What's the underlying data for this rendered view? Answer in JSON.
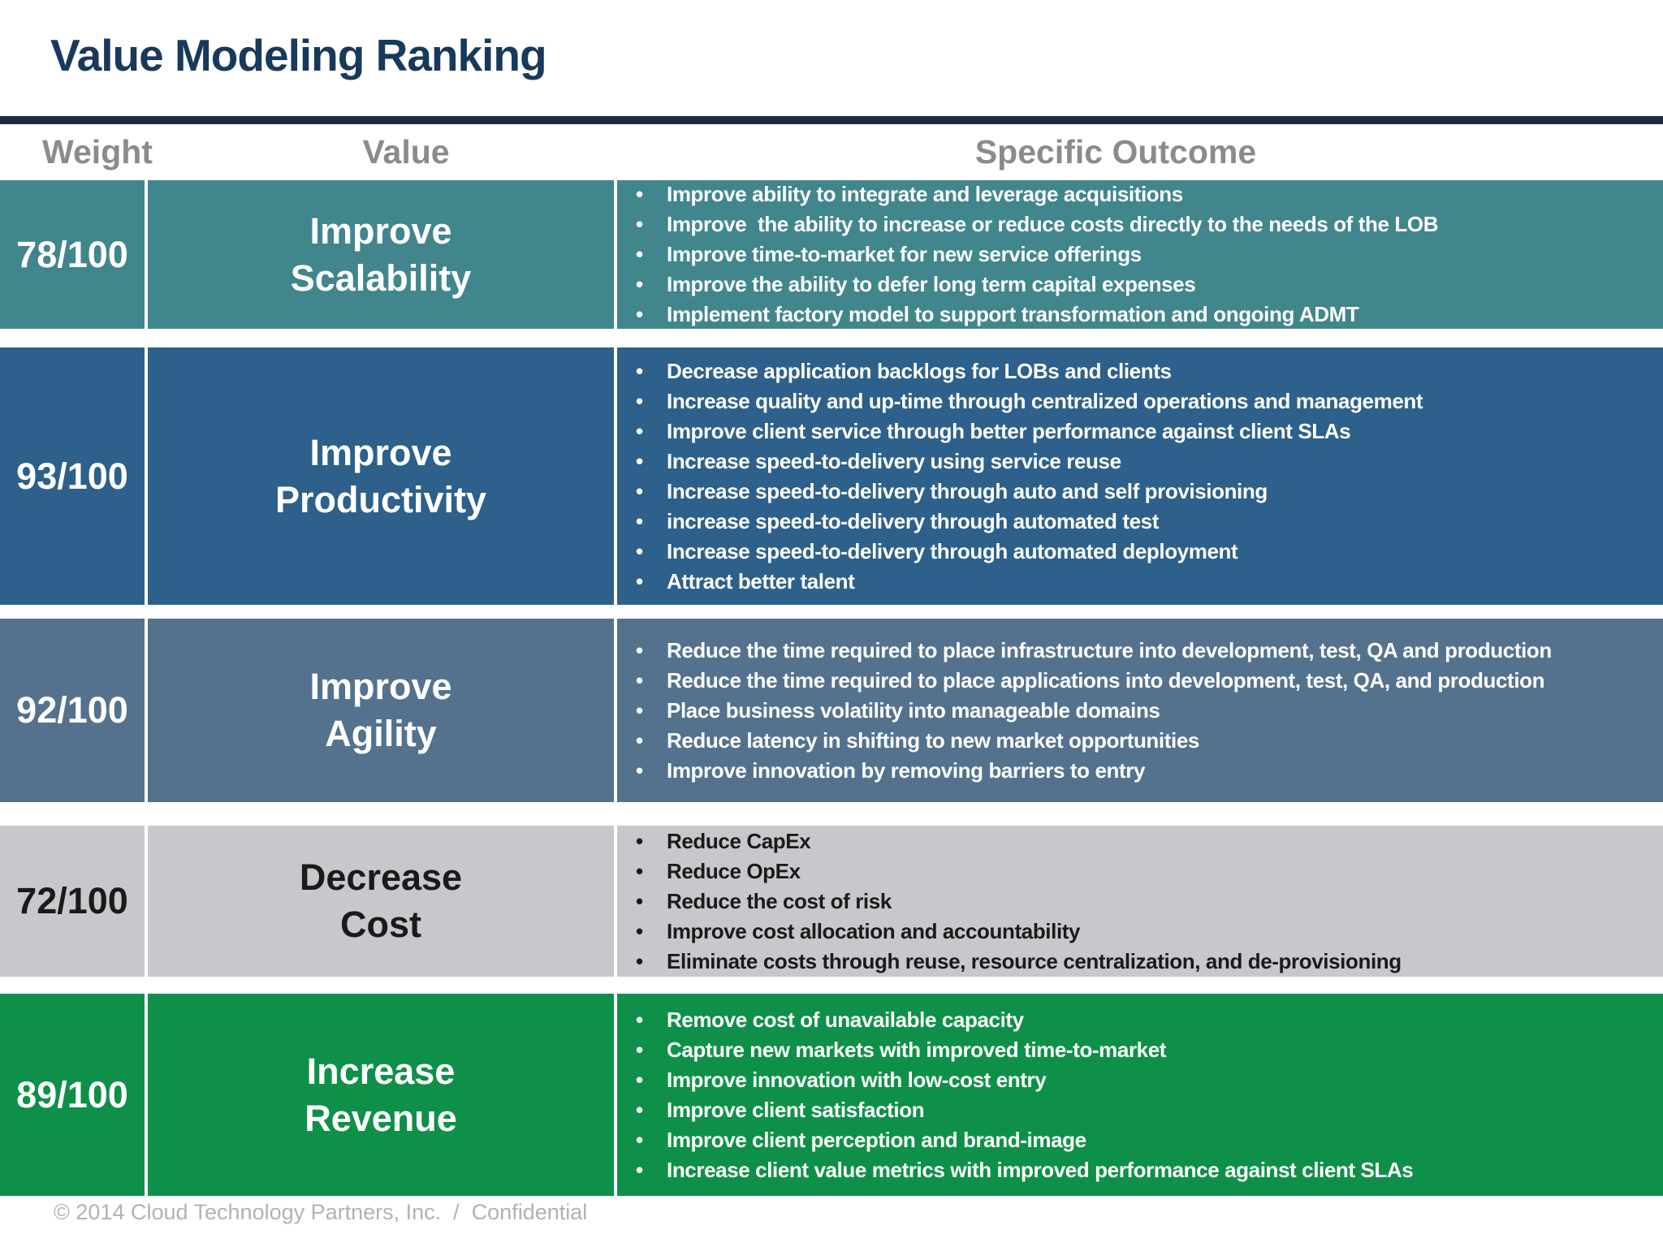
{
  "slide": {
    "title": "Value Modeling Ranking",
    "footer": "© 2014 Cloud Technology Partners, Inc.  /  Confidential"
  },
  "colors": {
    "title_navy": "#17395c",
    "title_rule": "#1e2c40",
    "header_gray": "#8c8b8b",
    "footer_gray": "#b3b1b4"
  },
  "table": {
    "headers": {
      "weight": "Weight",
      "value": "Value",
      "outcome": "Specific Outcome"
    },
    "rows": [
      {
        "weight": "78/100",
        "value_line1": "Improve",
        "value_line2": "Scalability",
        "color": "#41868c",
        "text_color": "#ffffff",
        "outcomes": [
          "Improve ability to integrate and leverage acquisitions",
          "Improve  the ability to increase or reduce costs directly to the needs of the LOB",
          "Improve time-to-market for new service offerings",
          "Improve the ability to defer long term capital expenses",
          "Implement factory model to support transformation and ongoing ADMT"
        ]
      },
      {
        "weight": "93/100",
        "value_line1": "Improve",
        "value_line2": "Productivity",
        "color": "#2d608a",
        "text_color": "#ffffff",
        "outcomes": [
          "Decrease application backlogs for LOBs and clients",
          "Increase quality and up-time through centralized operations and management",
          "Improve client service through better performance against client SLAs",
          "Increase speed-to-delivery using service reuse",
          "Increase speed-to-delivery through auto and self provisioning",
          "increase speed-to-delivery through automated test",
          "Increase speed-to-delivery through automated deployment",
          "Attract better talent"
        ]
      },
      {
        "weight": "92/100",
        "value_line1": "Improve",
        "value_line2": "Agility",
        "color": "#54728e",
        "text_color": "#ffffff",
        "outcomes": [
          "Reduce the time required to place infrastructure into development, test, QA and production",
          "Reduce the time required to place applications into development, test, QA, and production",
          "Place business volatility into manageable domains",
          "Reduce latency in shifting to new market opportunities",
          "Improve innovation by removing barriers to entry"
        ]
      },
      {
        "weight": "72/100",
        "value_line1": "Decrease",
        "value_line2": "Cost",
        "color": "#c8c7cb",
        "text_color": "#1a1a1a",
        "outcomes": [
          "Reduce CapEx",
          "Reduce OpEx",
          "Reduce the cost of risk",
          "Improve cost allocation and accountability",
          "Eliminate costs through reuse, resource centralization, and de-provisioning"
        ]
      },
      {
        "weight": "89/100",
        "value_line1": "Increase",
        "value_line2": "Revenue",
        "color": "#0f9049",
        "text_color": "#ffffff",
        "outcomes": [
          "Remove cost of unavailable capacity",
          "Capture new markets with improved time-to-market",
          "Improve innovation with low-cost entry",
          "Improve client satisfaction",
          "Improve client perception and brand-image",
          "Increase client value metrics with improved performance against client SLAs"
        ]
      }
    ]
  }
}
